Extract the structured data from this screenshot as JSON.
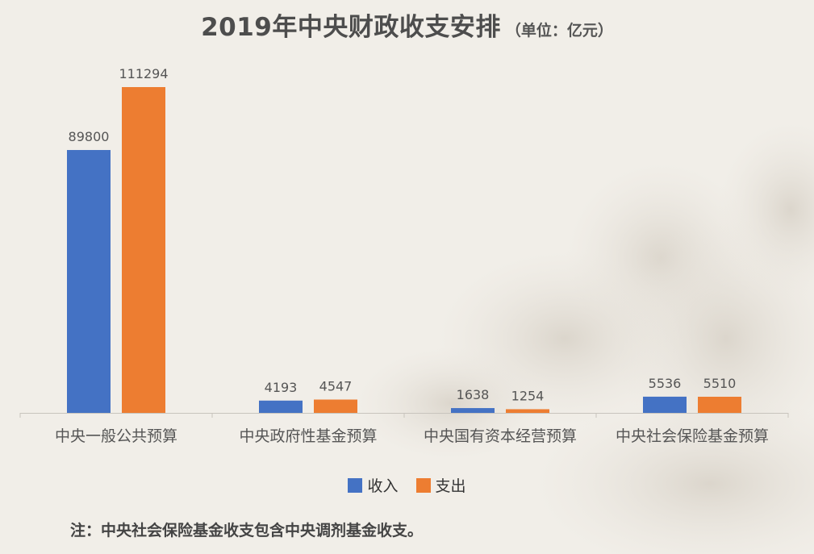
{
  "title": {
    "main": "2019年中央财政收支安排",
    "unit": "（单位：亿元）"
  },
  "note": "注：中央社会保险基金收支包含中央调剂基金收支。",
  "colors": {
    "income": "#4472c4",
    "expenditure": "#ed7d31",
    "background": "#f1eee8"
  },
  "chart_data": {
    "type": "bar",
    "title": "2019年中央财政收支安排",
    "subtitle": "（单位：亿元）",
    "categories": [
      "中央一般公共预算",
      "中央政府性基金预算",
      "中央国有资本经营预算",
      "中央社会保险基金预算"
    ],
    "series": [
      {
        "name": "收入",
        "values": [
          89800,
          4193,
          1638,
          5536
        ]
      },
      {
        "name": "支出",
        "values": [
          111294,
          4547,
          1254,
          5510
        ]
      }
    ],
    "xlabel": "",
    "ylabel": "",
    "ylim": [
      0,
      111294
    ],
    "grid": false,
    "legend": "bottom-center",
    "data_labels": true
  }
}
